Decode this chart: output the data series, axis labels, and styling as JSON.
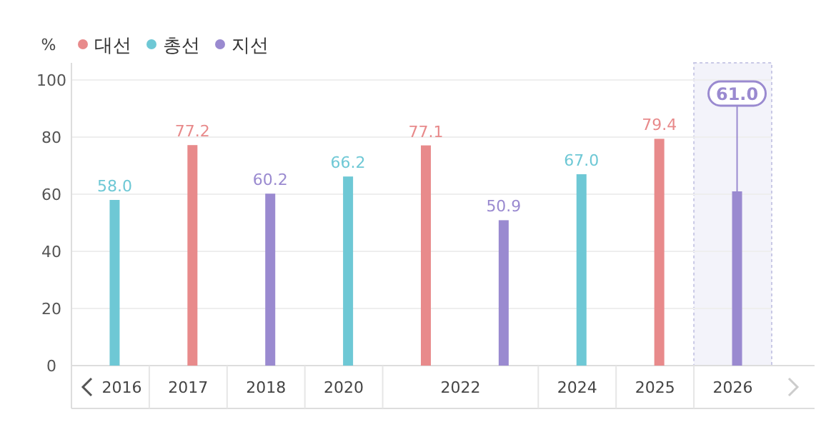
{
  "chart_data": {
    "type": "bar",
    "ylabel": "%",
    "categories": [
      "2016",
      "2017",
      "2018",
      "2020",
      "2022",
      "2024",
      "2025",
      "2026"
    ],
    "series": [
      {
        "name": "대선",
        "color": "#e88a8b",
        "values": [
          null,
          77.2,
          null,
          null,
          77.1,
          null,
          79.4,
          null
        ],
        "value_labels": [
          null,
          "77.2",
          null,
          null,
          "77.1",
          null,
          "79.4",
          null
        ]
      },
      {
        "name": "총선",
        "color": "#6ec8d5",
        "values": [
          58.0,
          null,
          null,
          66.2,
          null,
          67.0,
          null,
          null
        ],
        "value_labels": [
          "58.0",
          null,
          null,
          "66.2",
          null,
          "67.0",
          null,
          null
        ]
      },
      {
        "name": "지선",
        "color": "#9a8ad0",
        "values": [
          null,
          null,
          60.2,
          null,
          50.9,
          null,
          null,
          61.0
        ],
        "value_labels": [
          null,
          null,
          "60.2",
          null,
          "50.9",
          null,
          null,
          null
        ]
      }
    ],
    "ylim": [
      0,
      100
    ],
    "yticks": [
      0,
      20,
      40,
      60,
      80,
      100
    ],
    "grid": "y",
    "legend": "top left",
    "annotations": [
      {
        "text": "61.0",
        "x": "2026",
        "y": 61.0
      }
    ],
    "bands": [
      {
        "axis": "x",
        "from": "2026",
        "to": "2026",
        "color": "#f3f3fa"
      }
    ]
  }
}
